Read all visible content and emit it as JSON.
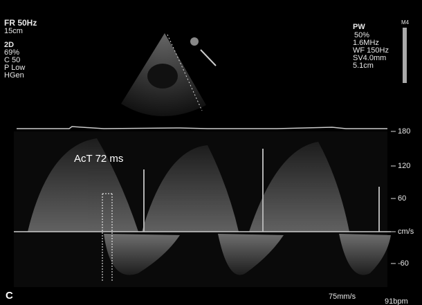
{
  "left_panel": {
    "lines": [
      "FR 50Hz",
      "15cm",
      "2D",
      "69%",
      "C 50",
      "P Low",
      "HGen"
    ]
  },
  "right_panel": {
    "lines": [
      "PW",
      "50%",
      "1.6MHz",
      "WF 150Hz",
      "SV4.0mm",
      "5.1cm"
    ],
    "probe": "M4"
  },
  "scale": {
    "labels": [
      "180",
      "120",
      "60",
      "cm/s",
      "-60"
    ]
  },
  "annotation": "AcT 72 ms",
  "panel_letter": "C",
  "sweep_speed": "75mm/s",
  "heart_rate": "91bpm"
}
